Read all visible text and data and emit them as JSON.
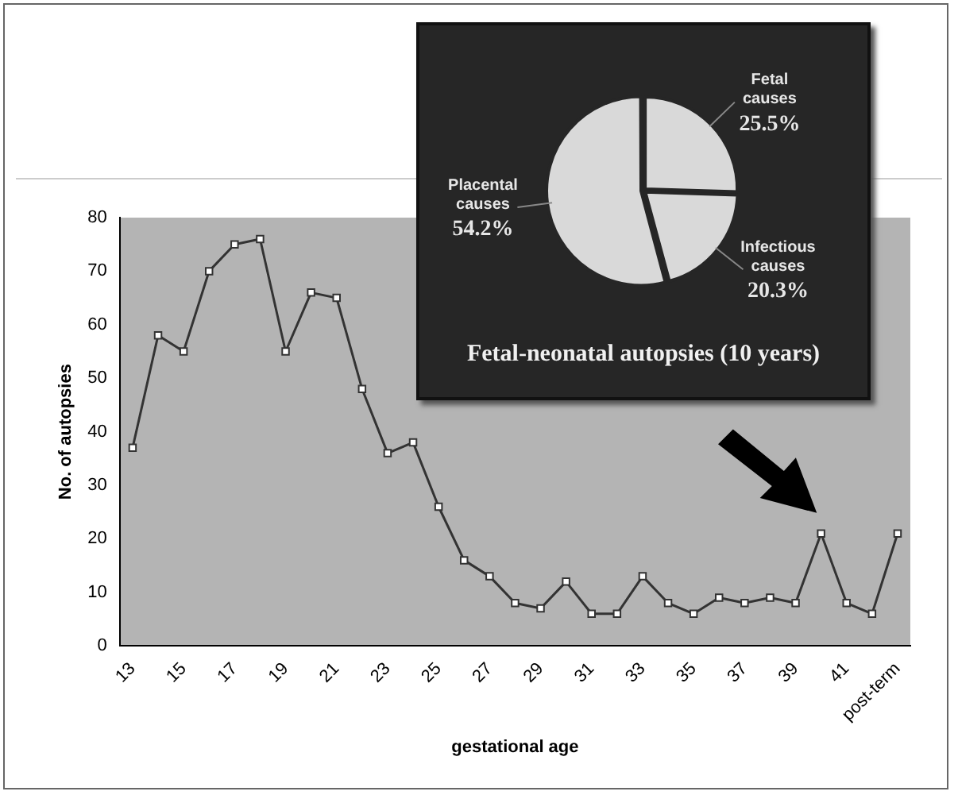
{
  "chart_data": [
    {
      "type": "line",
      "xlabel": "gestational age",
      "ylabel": "No. of autopsies",
      "categories": [
        "13",
        null,
        "15",
        null,
        "17",
        null,
        "19",
        null,
        "21",
        null,
        "23",
        null,
        "25",
        null,
        "27",
        null,
        "29",
        null,
        "31",
        null,
        "33",
        null,
        "35",
        null,
        "37",
        null,
        "39",
        null,
        "41",
        null,
        "post-term"
      ],
      "series": [
        {
          "color": "#333333",
          "values": [
            37,
            58,
            55,
            70,
            75,
            76,
            55,
            66,
            65,
            48,
            36,
            38,
            26,
            16,
            13,
            8,
            7,
            12,
            6,
            6,
            13,
            8,
            6,
            9,
            8,
            9,
            8,
            21,
            8,
            6,
            21
          ]
        }
      ],
      "ylim": [
        0,
        80
      ],
      "yticks": [
        0,
        10,
        20,
        30,
        40,
        50,
        60,
        70,
        80
      ],
      "grid": false,
      "legend": false,
      "marker": "square",
      "line_style": "solid"
    },
    {
      "type": "pie",
      "title": "Fetal-neonatal autopsies (10 years)",
      "categories": [
        "Fetal causes",
        "Infectious causes",
        "Placental causes"
      ],
      "values": [
        25.5,
        20.3,
        54.2
      ],
      "colors": [
        "#d9d9d9",
        "#d9d9d9",
        "#d9d9d9"
      ],
      "value_labels": [
        "25.5%",
        "20.3%",
        "54.2%"
      ],
      "legend": false
    }
  ]
}
